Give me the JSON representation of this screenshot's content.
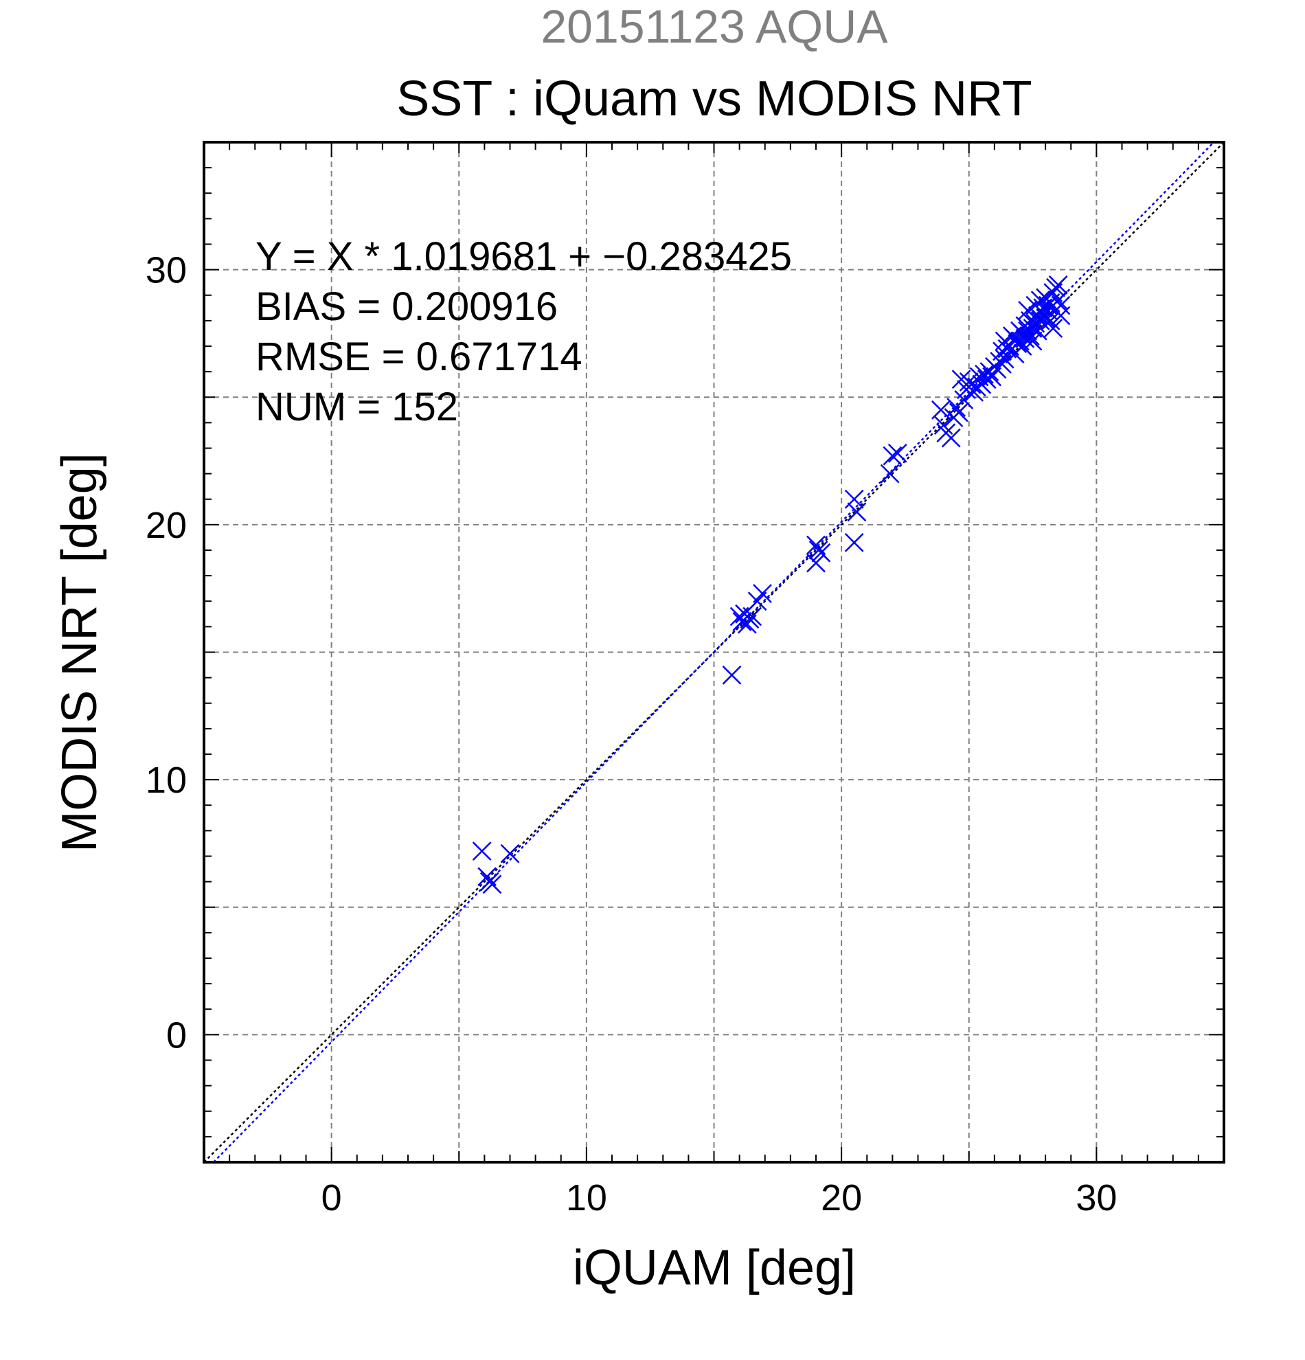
{
  "chart_data": {
    "type": "scatter",
    "date_title": "20151123 AQUA",
    "title": "SST : iQuam vs MODIS NRT",
    "xlabel": "iQUAM [deg]",
    "ylabel": "MODIS NRT [deg]",
    "xlim": [
      -5,
      35
    ],
    "ylim": [
      -5,
      35
    ],
    "x_ticks": [
      0,
      10,
      20,
      30
    ],
    "y_ticks": [
      0,
      10,
      20,
      30
    ],
    "grid": true,
    "grid_step": 5,
    "stats": {
      "fit": "Y = X * 1.019681 + −0.283425",
      "bias": "BIAS = 0.200916",
      "rmse": "RMSE = 0.671714",
      "num": "NUM = 152"
    },
    "fit_line": {
      "slope": 1.019681,
      "intercept": -0.283425,
      "color": "#0000ff"
    },
    "identity_line": {
      "slope": 1,
      "intercept": 0,
      "color": "#000000"
    },
    "marker_color": "#0000ff",
    "date_title_color": "#808080",
    "points": [
      [
        5.9,
        7.2
      ],
      [
        6.1,
        6.2
      ],
      [
        6.2,
        6.0
      ],
      [
        6.3,
        5.9
      ],
      [
        7.0,
        7.1
      ],
      [
        15.7,
        14.1
      ],
      [
        16.0,
        16.4
      ],
      [
        16.1,
        16.2
      ],
      [
        16.2,
        16.5
      ],
      [
        16.3,
        16.1
      ],
      [
        16.4,
        16.3
      ],
      [
        16.5,
        16.4
      ],
      [
        16.7,
        17.0
      ],
      [
        16.9,
        17.3
      ],
      [
        19.0,
        18.5
      ],
      [
        19.0,
        19.2
      ],
      [
        19.1,
        19.0
      ],
      [
        19.2,
        18.9
      ],
      [
        20.5,
        21.0
      ],
      [
        20.5,
        19.3
      ],
      [
        20.6,
        20.5
      ],
      [
        21.9,
        22.0
      ],
      [
        22.0,
        22.7
      ],
      [
        22.2,
        22.8
      ],
      [
        23.9,
        24.5
      ],
      [
        24.0,
        23.9
      ],
      [
        24.1,
        23.6
      ],
      [
        24.3,
        23.4
      ],
      [
        24.4,
        24.2
      ],
      [
        24.5,
        24.6
      ],
      [
        24.6,
        24.4
      ],
      [
        24.7,
        25.7
      ],
      [
        24.8,
        24.9
      ],
      [
        24.9,
        25.3
      ],
      [
        25.0,
        25.6
      ],
      [
        25.1,
        25.5
      ],
      [
        25.2,
        25.2
      ],
      [
        25.3,
        25.4
      ],
      [
        25.4,
        25.8
      ],
      [
        25.5,
        25.5
      ],
      [
        25.6,
        25.9
      ],
      [
        25.7,
        25.7
      ],
      [
        25.8,
        26.0
      ],
      [
        25.9,
        25.8
      ],
      [
        26.0,
        26.2
      ],
      [
        26.1,
        26.1
      ],
      [
        26.2,
        26.4
      ],
      [
        26.3,
        26.8
      ],
      [
        26.3,
        26.3
      ],
      [
        26.4,
        27.2
      ],
      [
        26.4,
        26.5
      ],
      [
        26.5,
        26.9
      ],
      [
        26.6,
        27.0
      ],
      [
        26.7,
        27.4
      ],
      [
        26.8,
        26.7
      ],
      [
        26.8,
        27.3
      ],
      [
        26.9,
        27.1
      ],
      [
        27.0,
        27.6
      ],
      [
        27.0,
        27.2
      ],
      [
        27.1,
        27.5
      ],
      [
        27.1,
        27.0
      ],
      [
        27.2,
        27.8
      ],
      [
        27.2,
        27.3
      ],
      [
        27.3,
        28.4
      ],
      [
        27.3,
        27.6
      ],
      [
        27.4,
        27.4
      ],
      [
        27.4,
        28.0
      ],
      [
        27.5,
        27.7
      ],
      [
        27.5,
        27.2
      ],
      [
        27.6,
        28.6
      ],
      [
        27.6,
        27.9
      ],
      [
        27.7,
        28.2
      ],
      [
        27.7,
        27.6
      ],
      [
        27.8,
        28.8
      ],
      [
        27.8,
        28.0
      ],
      [
        27.9,
        28.5
      ],
      [
        27.9,
        28.3
      ],
      [
        28.0,
        28.9
      ],
      [
        28.0,
        28.1
      ],
      [
        28.1,
        28.6
      ],
      [
        28.1,
        28.4
      ],
      [
        28.2,
        28.0
      ],
      [
        28.2,
        28.7
      ],
      [
        28.3,
        29.1
      ],
      [
        28.3,
        27.7
      ],
      [
        28.4,
        28.4
      ],
      [
        28.4,
        29.3
      ],
      [
        28.5,
        28.8
      ],
      [
        28.5,
        29.4
      ],
      [
        28.6,
        28.2
      ],
      [
        28.6,
        28.6
      ]
    ]
  }
}
